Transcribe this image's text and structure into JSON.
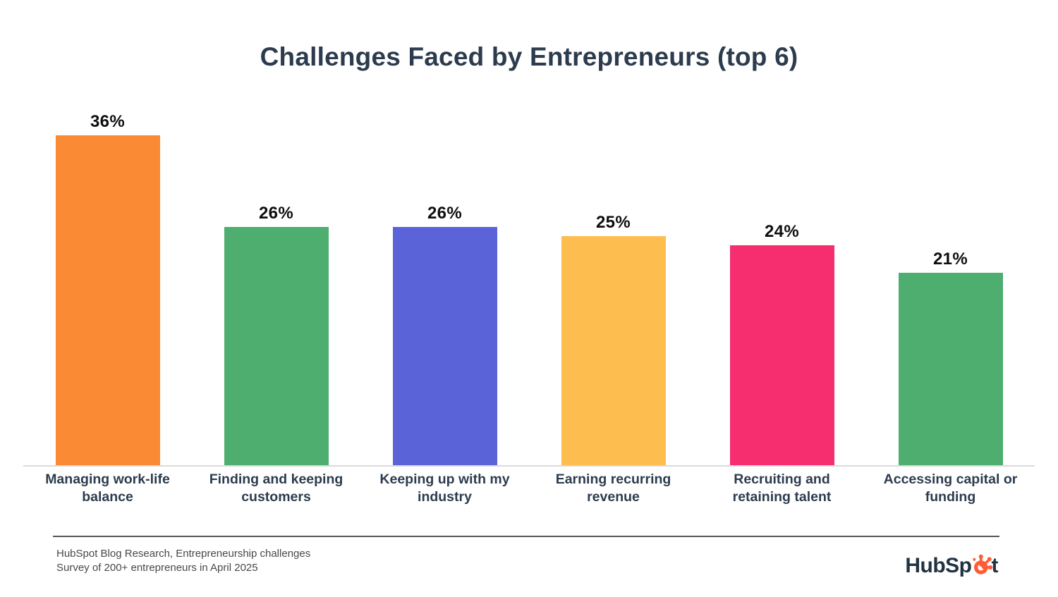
{
  "title": "Challenges Faced by Entrepreneurs (top 6)",
  "chart_data": {
    "type": "bar",
    "title": "Challenges Faced by Entrepreneurs (top 6)",
    "categories": [
      "Managing work-life balance",
      "Finding and keeping customers",
      "Keeping up with my industry",
      "Earning recurring revenue",
      "Recruiting and retaining talent",
      "Accessing capital or funding"
    ],
    "values": [
      36,
      26,
      26,
      25,
      24,
      21
    ],
    "value_labels": [
      "36%",
      "26%",
      "26%",
      "25%",
      "24%",
      "21%"
    ],
    "bar_colors": [
      "#fb8a34",
      "#4dae6f",
      "#5b63d8",
      "#fdbd4f",
      "#f62d6e",
      "#4dae6f"
    ],
    "xlabel": "",
    "ylabel": "",
    "ylim": [
      0,
      40
    ],
    "grid": false,
    "legend": "none",
    "value_label_color": "#0e0e0e",
    "category_label_color": "#2c3c4e",
    "axis_line_color": "#dadada"
  },
  "footer": {
    "source_line1": "HubSpot Blog Research, Entrepreneurship challenges",
    "source_line2": "Survey of 200+ entrepreneurs in April 2025",
    "divider_color": "#555555",
    "logo": {
      "name": "HubSpot",
      "text_before": "HubSp",
      "text_after": "t",
      "text_color": "#213343",
      "sprocket_color": "#ff5c35"
    }
  },
  "colors": {
    "title": "#2c3c4e",
    "footer_text": "#484848",
    "background": "#ffffff"
  }
}
